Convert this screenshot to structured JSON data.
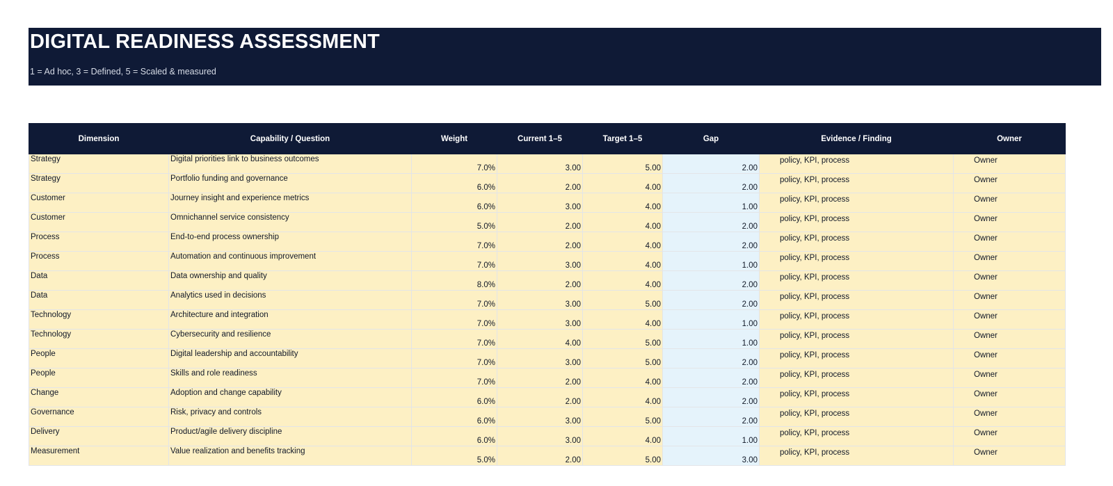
{
  "header": {
    "title": "DIGITAL READINESS ASSESSMENT",
    "subtitle": "1 = Ad hoc, 3 = Defined, 5 = Scaled & measured"
  },
  "colors": {
    "header_bg": "#0f1a36",
    "input_cell": "#fdf0c4",
    "gap_cell": "#e5f3fb"
  },
  "table": {
    "columns": [
      "Dimension",
      "Capability / Question",
      "Weight",
      "Current 1–5",
      "Target 1–5",
      "Gap",
      "Evidence / Finding",
      "Owner"
    ],
    "rows": [
      {
        "dimension": "Strategy",
        "capability": "Digital priorities link to business outcomes",
        "weight": "7.0%",
        "current": "3.00",
        "target": "5.00",
        "gap": "2.00",
        "evidence": "policy, KPI, process",
        "owner": "Owner"
      },
      {
        "dimension": "Strategy",
        "capability": "Portfolio funding and governance",
        "weight": "6.0%",
        "current": "2.00",
        "target": "4.00",
        "gap": "2.00",
        "evidence": "policy, KPI, process",
        "owner": "Owner"
      },
      {
        "dimension": "Customer",
        "capability": "Journey insight and experience metrics",
        "weight": "6.0%",
        "current": "3.00",
        "target": "4.00",
        "gap": "1.00",
        "evidence": "policy, KPI, process",
        "owner": "Owner"
      },
      {
        "dimension": "Customer",
        "capability": "Omnichannel service consistency",
        "weight": "5.0%",
        "current": "2.00",
        "target": "4.00",
        "gap": "2.00",
        "evidence": "policy, KPI, process",
        "owner": "Owner"
      },
      {
        "dimension": "Process",
        "capability": "End-to-end process ownership",
        "weight": "7.0%",
        "current": "2.00",
        "target": "4.00",
        "gap": "2.00",
        "evidence": "policy, KPI, process",
        "owner": "Owner"
      },
      {
        "dimension": "Process",
        "capability": "Automation and continuous improvement",
        "weight": "7.0%",
        "current": "3.00",
        "target": "4.00",
        "gap": "1.00",
        "evidence": "policy, KPI, process",
        "owner": "Owner"
      },
      {
        "dimension": "Data",
        "capability": "Data ownership and quality",
        "weight": "8.0%",
        "current": "2.00",
        "target": "4.00",
        "gap": "2.00",
        "evidence": "policy, KPI, process",
        "owner": "Owner"
      },
      {
        "dimension": "Data",
        "capability": "Analytics used in decisions",
        "weight": "7.0%",
        "current": "3.00",
        "target": "5.00",
        "gap": "2.00",
        "evidence": "policy, KPI, process",
        "owner": "Owner"
      },
      {
        "dimension": "Technology",
        "capability": "Architecture and integration",
        "weight": "7.0%",
        "current": "3.00",
        "target": "4.00",
        "gap": "1.00",
        "evidence": "policy, KPI, process",
        "owner": "Owner"
      },
      {
        "dimension": "Technology",
        "capability": "Cybersecurity and resilience",
        "weight": "7.0%",
        "current": "4.00",
        "target": "5.00",
        "gap": "1.00",
        "evidence": "policy, KPI, process",
        "owner": "Owner"
      },
      {
        "dimension": "People",
        "capability": "Digital leadership and accountability",
        "weight": "7.0%",
        "current": "3.00",
        "target": "5.00",
        "gap": "2.00",
        "evidence": "policy, KPI, process",
        "owner": "Owner"
      },
      {
        "dimension": "People",
        "capability": "Skills and role readiness",
        "weight": "7.0%",
        "current": "2.00",
        "target": "4.00",
        "gap": "2.00",
        "evidence": "policy, KPI, process",
        "owner": "Owner"
      },
      {
        "dimension": "Change",
        "capability": "Adoption and change capability",
        "weight": "6.0%",
        "current": "2.00",
        "target": "4.00",
        "gap": "2.00",
        "evidence": "policy, KPI, process",
        "owner": "Owner"
      },
      {
        "dimension": "Governance",
        "capability": "Risk, privacy and controls",
        "weight": "6.0%",
        "current": "3.00",
        "target": "5.00",
        "gap": "2.00",
        "evidence": "policy, KPI, process",
        "owner": "Owner"
      },
      {
        "dimension": "Delivery",
        "capability": "Product/agile delivery discipline",
        "weight": "6.0%",
        "current": "3.00",
        "target": "4.00",
        "gap": "1.00",
        "evidence": "policy, KPI, process",
        "owner": "Owner"
      },
      {
        "dimension": "Measurement",
        "capability": "Value realization and benefits tracking",
        "weight": "5.0%",
        "current": "2.00",
        "target": "5.00",
        "gap": "3.00",
        "evidence": "policy, KPI, process",
        "owner": "Owner"
      }
    ]
  }
}
